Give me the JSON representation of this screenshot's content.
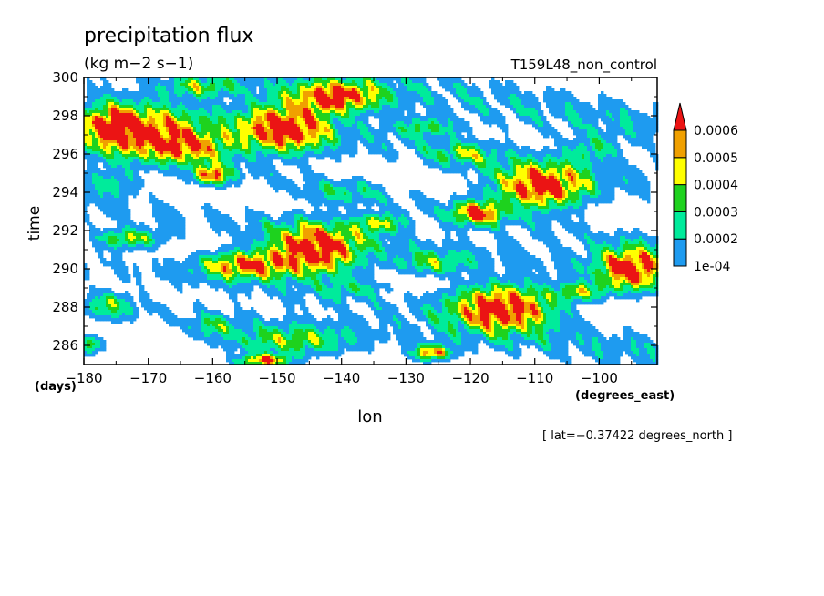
{
  "chart_data": {
    "type": "heatmap",
    "title": "precipitation flux",
    "units": "(kg m−2 s−1)",
    "run_label": "T159L48_non_control",
    "xlabel": "lon",
    "ylabel": "time",
    "x_units": "(degrees_east)",
    "y_units": "(days)",
    "slice_label": "[ lat=−0.37422 degrees_north ]",
    "xlim": [
      -180,
      -91
    ],
    "ylim": [
      285,
      300
    ],
    "x_ticks": [
      "−180",
      "−170",
      "−160",
      "−150",
      "−140",
      "−130",
      "−120",
      "−110",
      "−100"
    ],
    "x_tick_values": [
      -180,
      -170,
      -160,
      -150,
      -140,
      -130,
      -120,
      -110,
      -100
    ],
    "y_ticks": [
      "286",
      "288",
      "290",
      "292",
      "294",
      "296",
      "298",
      "300"
    ],
    "y_tick_values": [
      286,
      288,
      290,
      292,
      294,
      296,
      298,
      300
    ],
    "colorbar": {
      "labels": [
        "1e-04",
        "0.0002",
        "0.0003",
        "0.0004",
        "0.0005",
        "0.0006"
      ],
      "levels": [
        0.0001,
        0.0002,
        0.0003,
        0.0004,
        0.0005,
        0.0006
      ],
      "colors": [
        "#1e9bf0",
        "#00eb9b",
        "#1ed21e",
        "#ffff00",
        "#f0a000",
        "#eb1414"
      ]
    },
    "features": [
      {
        "x": -176,
        "y": 297.6,
        "w": 4,
        "h": 0.9,
        "p": 0.0004
      },
      {
        "x": -171,
        "y": 297.1,
        "w": 9,
        "h": 1.2,
        "p": 0.0007
      },
      {
        "x": -163,
        "y": 296.3,
        "w": 6,
        "h": 0.8,
        "p": 0.00045
      },
      {
        "x": -160,
        "y": 294.9,
        "w": 3,
        "h": 0.5,
        "p": 0.0006
      },
      {
        "x": -149,
        "y": 297.3,
        "w": 7,
        "h": 1.2,
        "p": 0.00075
      },
      {
        "x": -141,
        "y": 299.0,
        "w": 7,
        "h": 0.8,
        "p": 0.0007
      },
      {
        "x": -162,
        "y": 299.5,
        "w": 6,
        "h": 0.5,
        "p": 0.00035
      },
      {
        "x": -127,
        "y": 297.4,
        "w": 5,
        "h": 0.5,
        "p": 0.0003
      },
      {
        "x": -121,
        "y": 296.0,
        "w": 5,
        "h": 0.6,
        "p": 0.0003
      },
      {
        "x": -109,
        "y": 294.3,
        "w": 7,
        "h": 1.1,
        "p": 0.0008
      },
      {
        "x": -119,
        "y": 292.9,
        "w": 4,
        "h": 0.6,
        "p": 0.00065
      },
      {
        "x": -101,
        "y": 296.3,
        "w": 4,
        "h": 0.7,
        "p": 0.00025
      },
      {
        "x": -144,
        "y": 291.0,
        "w": 7,
        "h": 1.3,
        "p": 0.0008
      },
      {
        "x": -155,
        "y": 290.2,
        "w": 7,
        "h": 0.7,
        "p": 0.00065
      },
      {
        "x": -134,
        "y": 292.4,
        "w": 4,
        "h": 0.5,
        "p": 0.0004
      },
      {
        "x": -126,
        "y": 290.3,
        "w": 6,
        "h": 0.6,
        "p": 0.00035
      },
      {
        "x": -173,
        "y": 291.6,
        "w": 5,
        "h": 0.5,
        "p": 0.00045
      },
      {
        "x": -95,
        "y": 290.0,
        "w": 5,
        "h": 1.1,
        "p": 0.00075
      },
      {
        "x": -115,
        "y": 288.0,
        "w": 8,
        "h": 1.2,
        "p": 0.0008
      },
      {
        "x": -103,
        "y": 288.8,
        "w": 4,
        "h": 0.5,
        "p": 0.0004
      },
      {
        "x": -126,
        "y": 285.6,
        "w": 3,
        "h": 0.4,
        "p": 0.00065
      },
      {
        "x": -148,
        "y": 286.2,
        "w": 10,
        "h": 0.8,
        "p": 0.0004
      },
      {
        "x": -152,
        "y": 285.2,
        "w": 4,
        "h": 0.3,
        "p": 0.00065
      },
      {
        "x": -176,
        "y": 288.1,
        "w": 4,
        "h": 0.7,
        "p": 0.0003
      },
      {
        "x": -160,
        "y": 287.0,
        "w": 4,
        "h": 0.6,
        "p": 0.00025
      },
      {
        "x": -138,
        "y": 289.0,
        "w": 5,
        "h": 0.5,
        "p": 0.0002
      },
      {
        "x": -179,
        "y": 286.0,
        "w": 2,
        "h": 0.5,
        "p": 0.0004
      },
      {
        "x": -140,
        "y": 294.0,
        "w": 6,
        "h": 0.6,
        "p": 0.0002
      },
      {
        "x": -176,
        "y": 294.5,
        "w": 5,
        "h": 0.8,
        "p": 0.00025
      }
    ],
    "bands": [
      {
        "x0": -180,
        "t0": 298.8,
        "slope": -0.048,
        "amp": 0.00022,
        "width": 1.2
      },
      {
        "x0": -180,
        "t0": 296.5,
        "slope": -0.06,
        "amp": 0.00018,
        "width": 0.9
      },
      {
        "x0": -180,
        "t0": 293.3,
        "slope": -0.04,
        "amp": 0.0002,
        "width": 1.0
      },
      {
        "x0": -180,
        "t0": 290.4,
        "slope": -0.05,
        "amp": 0.00018,
        "width": 1.0
      },
      {
        "x0": -180,
        "t0": 301.2,
        "slope": -0.045,
        "amp": 0.0002,
        "width": 1.0
      },
      {
        "x0": -180,
        "t0": 288.0,
        "slope": -0.03,
        "amp": 0.00015,
        "width": 0.9
      },
      {
        "x0": -180,
        "t0": 303.2,
        "slope": -0.06,
        "amp": 0.00016,
        "width": 1.0
      }
    ]
  }
}
